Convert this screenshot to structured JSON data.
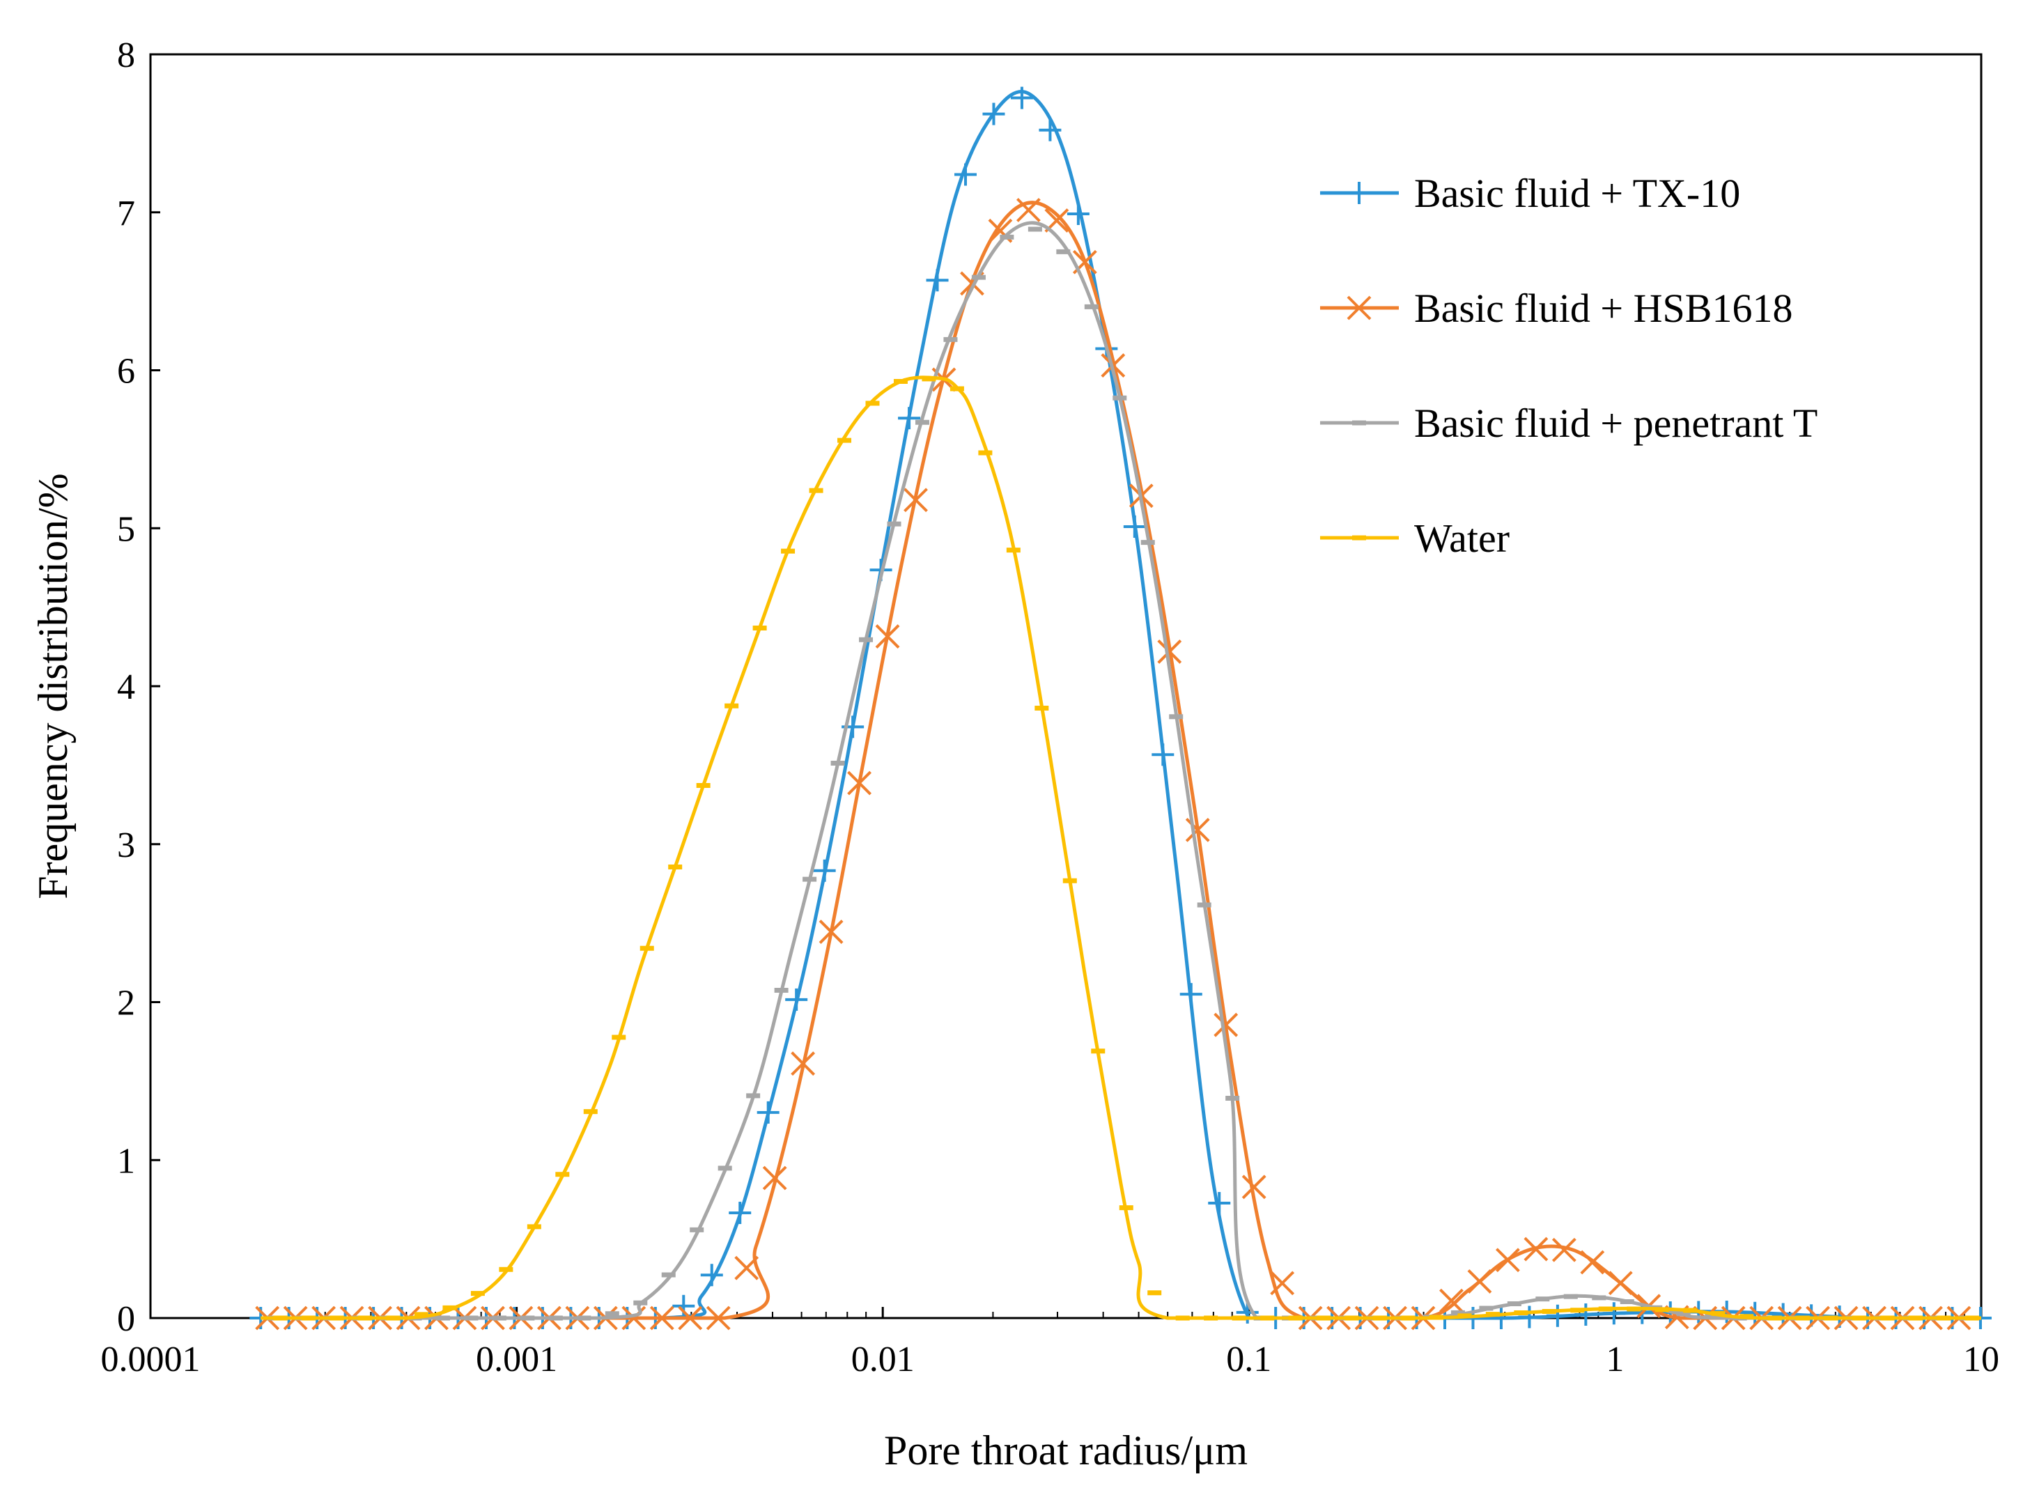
{
  "chart_data": {
    "type": "line",
    "x_scale": "log",
    "xlabel": "Pore throat radius/μm",
    "ylabel": "Frequency distribution/%",
    "xlim": [
      0.0001,
      10
    ],
    "ylim": [
      0,
      8
    ],
    "x_ticks": [
      0.0001,
      0.001,
      0.01,
      0.1,
      1,
      10
    ],
    "x_tick_labels": [
      "0.0001",
      "0.001",
      "0.01",
      "0.1",
      "1",
      "10"
    ],
    "y_ticks": [
      0,
      1,
      2,
      3,
      4,
      5,
      6,
      7,
      8
    ],
    "y_tick_labels": [
      "0",
      "1",
      "2",
      "3",
      "4",
      "5",
      "6",
      "7",
      "8"
    ],
    "grid": false,
    "legend_position": "top-right",
    "series": [
      {
        "name": "Basic fluid + TX-10",
        "color": "#2a93d5",
        "marker": "plus",
        "x": [
          0.0002,
          0.0025,
          0.0032,
          0.004,
          0.005,
          0.0063,
          0.008,
          0.01,
          0.0126,
          0.0158,
          0.02,
          0.0251,
          0.0316,
          0.0398,
          0.05,
          0.063,
          0.0794,
          0.1,
          0.126,
          0.5,
          1,
          2,
          5,
          10
        ],
        "y": [
          0,
          0,
          0.14,
          0.6,
          1.4,
          2.35,
          3.55,
          4.8,
          6.05,
          7.1,
          7.62,
          7.75,
          7.35,
          6.3,
          4.85,
          2.9,
          0.9,
          0,
          0,
          0,
          0.03,
          0.04,
          0,
          0
        ]
      },
      {
        "name": "Basic fluid + HSB1618",
        "color": "#f07f2d",
        "marker": "cross",
        "x": [
          0.0002,
          0.0037,
          0.0045,
          0.0056,
          0.0071,
          0.0089,
          0.0112,
          0.0141,
          0.0178,
          0.0224,
          0.0282,
          0.0355,
          0.0447,
          0.0562,
          0.0708,
          0.0891,
          0.112,
          0.141,
          0.3,
          0.4,
          0.5,
          0.63,
          0.79,
          1,
          1.26,
          1.5,
          2,
          5,
          10
        ],
        "y": [
          0,
          0,
          0.45,
          1.25,
          2.35,
          3.55,
          4.75,
          5.8,
          6.6,
          7.0,
          7.03,
          6.7,
          5.85,
          4.7,
          3.25,
          1.65,
          0.38,
          0,
          0,
          0.18,
          0.36,
          0.45,
          0.42,
          0.25,
          0.06,
          0,
          0,
          0,
          0
        ]
      },
      {
        "name": "Basic fluid + penetrant T",
        "color": "#a6a6a6",
        "marker": "dash",
        "x": [
          0.0002,
          0.0017,
          0.0022,
          0.0028,
          0.0035,
          0.0045,
          0.0056,
          0.0071,
          0.0089,
          0.0112,
          0.0141,
          0.0178,
          0.0224,
          0.0282,
          0.0355,
          0.0447,
          0.0562,
          0.0708,
          0.0891,
          0.105,
          0.3,
          0.5,
          0.63,
          0.79,
          1,
          1.26,
          1.5,
          2,
          10
        ],
        "y": [
          0,
          0,
          0.1,
          0.35,
          0.8,
          1.45,
          2.3,
          3.25,
          4.25,
          5.2,
          6.0,
          6.55,
          6.88,
          6.9,
          6.55,
          5.8,
          4.6,
          3.05,
          1.5,
          0,
          0,
          0.08,
          0.12,
          0.14,
          0.12,
          0.07,
          0.03,
          0,
          0
        ]
      },
      {
        "name": "Water",
        "color": "#fcbf00",
        "marker": "dash",
        "x": [
          0.0002,
          0.0005,
          0.0007,
          0.0009,
          0.0011,
          0.0014,
          0.0018,
          0.0022,
          0.0028,
          0.0035,
          0.0045,
          0.0056,
          0.0071,
          0.0089,
          0.0112,
          0.0141,
          0.0158,
          0.0178,
          0.0224,
          0.0282,
          0.0355,
          0.0447,
          0.05,
          0.06,
          0.3,
          0.63,
          1,
          1.58,
          2.5,
          10
        ],
        "y": [
          0,
          0,
          0.08,
          0.25,
          0.55,
          1.0,
          1.6,
          2.25,
          2.95,
          3.6,
          4.3,
          4.9,
          5.4,
          5.75,
          5.93,
          5.95,
          5.9,
          5.7,
          4.95,
          3.65,
          2.2,
          0.85,
          0.35,
          0,
          0,
          0.04,
          0.06,
          0.05,
          0,
          0
        ]
      }
    ]
  }
}
